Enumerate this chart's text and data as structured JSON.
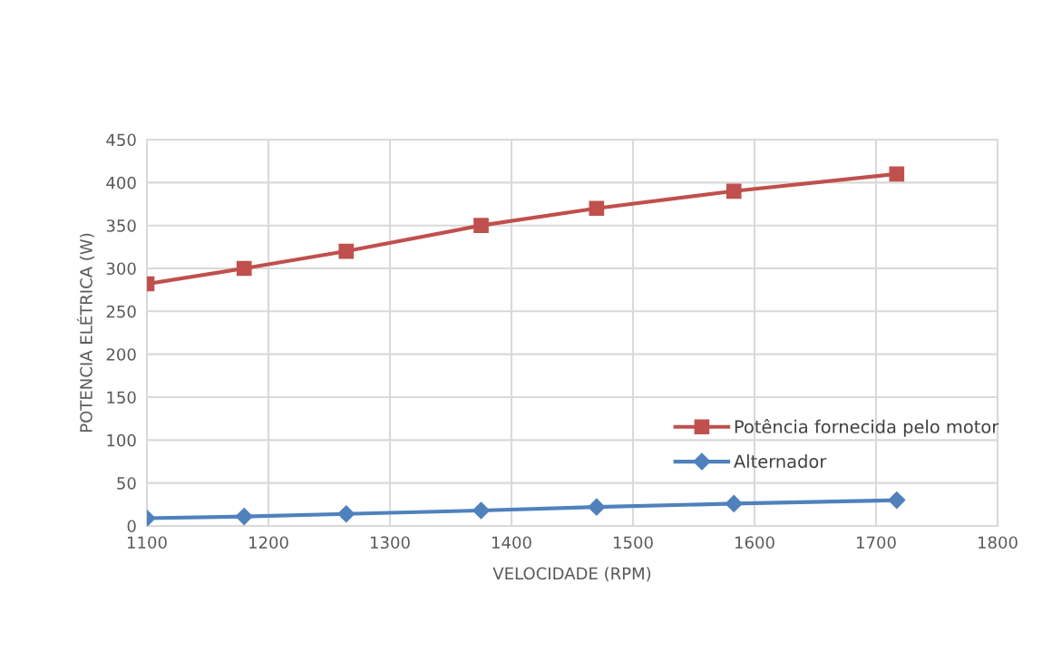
{
  "chart_data": {
    "type": "line",
    "xlabel": "VELOCIDADE (RPM)",
    "ylabel": "POTENCIA ELÉTRICA (W)",
    "xlim": [
      1100,
      1800
    ],
    "xticks": [
      1100,
      1200,
      1300,
      1400,
      1500,
      1600,
      1700,
      1800
    ],
    "ylim": [
      0,
      450
    ],
    "yticks": [
      0,
      50,
      100,
      150,
      200,
      250,
      300,
      350,
      400,
      450
    ],
    "grid": true,
    "legend": "bottom right",
    "series": [
      {
        "name": "Potência fornecida pelo motor",
        "color": "#c0504d",
        "marker": "square",
        "x": [
          1100,
          1180,
          1264,
          1375,
          1470,
          1583,
          1717
        ],
        "values": [
          282,
          300,
          320,
          350,
          370,
          390,
          410
        ]
      },
      {
        "name": "Alternador",
        "color": "#4f81bd",
        "marker": "diamond",
        "x": [
          1100,
          1180,
          1264,
          1375,
          1470,
          1583,
          1717
        ],
        "values": [
          9,
          11,
          14,
          18,
          22,
          26,
          30
        ]
      }
    ]
  }
}
